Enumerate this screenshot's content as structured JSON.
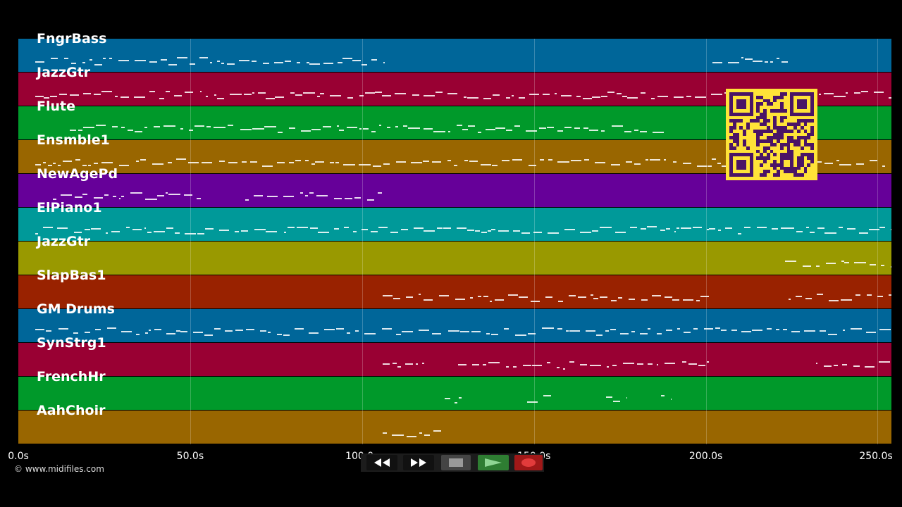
{
  "tracks": [
    {
      "name": "FngrBass",
      "color": "#006699"
    },
    {
      "name": "JazzGtr",
      "color": "#990033"
    },
    {
      "name": "Flute",
      "color": "#00992a"
    },
    {
      "name": "Ensmble1",
      "color": "#996600"
    },
    {
      "name": "NewAgePd",
      "color": "#660099"
    },
    {
      "name": "ElPiano1",
      "color": "#009999"
    },
    {
      "name": "JazzGtr",
      "color": "#999900"
    },
    {
      "name": "SlapBas1",
      "color": "#992200"
    },
    {
      "name": "GM Drums",
      "color": "#006699"
    },
    {
      "name": "SynStrg1",
      "color": "#990033"
    },
    {
      "name": "FrenchHr",
      "color": "#00992a"
    },
    {
      "name": "AahChoir",
      "color": "#996600"
    }
  ],
  "axis": {
    "ticks": [
      {
        "label": "0.0s",
        "value": 0
      },
      {
        "label": "50.0s",
        "value": 50
      },
      {
        "label": "100.0s",
        "value": 100
      },
      {
        "label": "150.0s",
        "value": 150
      },
      {
        "label": "200.0s",
        "value": 200
      },
      {
        "label": "250.0s",
        "value": 250
      }
    ],
    "max_seconds": 254
  },
  "copyright": "© www.midifiles.com",
  "transport": {
    "rewind_icon": "rewind-icon",
    "forward_icon": "fast-forward-icon",
    "stop_icon": "stop-icon",
    "play_icon": "play-icon",
    "record_icon": "record-icon",
    "colors": {
      "play": "#2e7d32",
      "record": "#a01818",
      "stop": "#444444"
    }
  },
  "activity": [
    [
      [
        5,
        107
      ],
      [
        202,
        224
      ]
    ],
    [
      [
        5,
        254
      ]
    ],
    [
      [
        15,
        188
      ]
    ],
    [
      [
        5,
        254
      ]
    ],
    [
      [
        10,
        53
      ],
      [
        66,
        106
      ]
    ],
    [
      [
        5,
        254
      ]
    ],
    [
      [
        223,
        254
      ]
    ],
    [
      [
        106,
        201
      ],
      [
        224,
        254
      ]
    ],
    [
      [
        5,
        254
      ]
    ],
    [
      [
        106,
        118
      ],
      [
        128,
        201
      ],
      [
        232,
        254
      ]
    ],
    [
      [
        124,
        129
      ],
      [
        148,
        155
      ],
      [
        171,
        177
      ],
      [
        187,
        190
      ]
    ],
    [
      [
        106,
        123
      ]
    ]
  ]
}
